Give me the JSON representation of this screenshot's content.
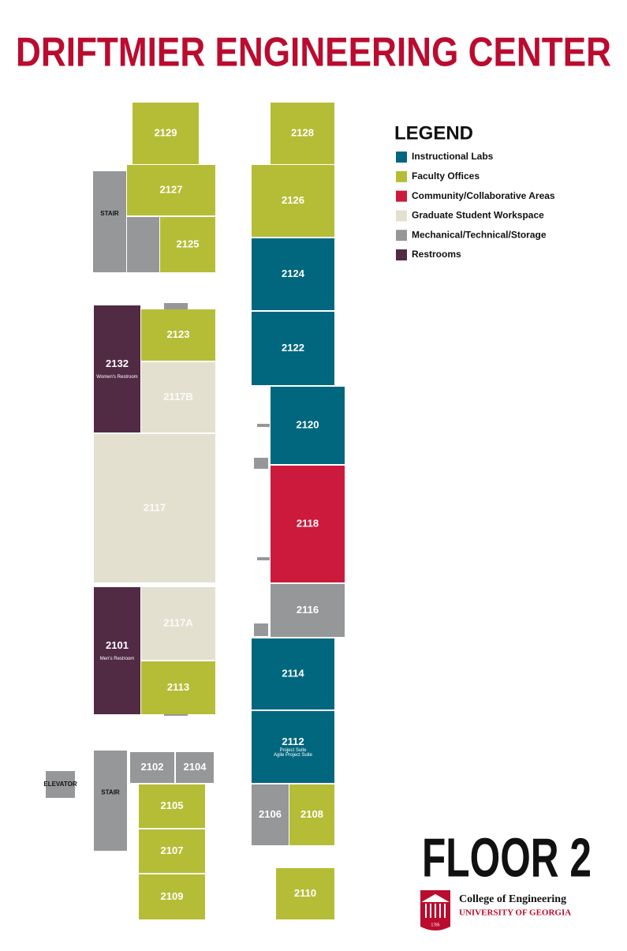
{
  "header": {
    "title": "DRIFTMIER ENGINEERING CENTER"
  },
  "legend": {
    "title": "LEGEND",
    "items": [
      "Instructional Labs",
      "Faculty Offices",
      "Community/Collaborative Areas",
      "Graduate Student Workspace",
      "Mechanical/Technical/Storage",
      "Restrooms"
    ]
  },
  "rooms": [
    {
      "label": "2129"
    },
    {
      "label": "2127"
    },
    {
      "label": "STAIR"
    },
    {
      "label": "2125"
    },
    {
      "label": "2128"
    },
    {
      "label": "2126"
    },
    {
      "label": "2124"
    },
    {
      "label": "2122"
    },
    {
      "label": "2120"
    },
    {
      "label": "2118"
    },
    {
      "label": "2116"
    },
    {
      "label": "2114"
    },
    {
      "label": "2112",
      "note": "Project Suite",
      "sublabel": "Agile Project Suite"
    },
    {
      "label": "2106"
    },
    {
      "label": "2108"
    },
    {
      "label": "2110"
    },
    {
      "label": "2132",
      "sublabel": "Women's Restroom"
    },
    {
      "label": "2123"
    },
    {
      "label": "2117B"
    },
    {
      "label": "2117"
    },
    {
      "label": "2101",
      "sublabel": "Men's Restroom"
    },
    {
      "label": "2117A"
    },
    {
      "label": "2113"
    },
    {
      "label": "ELEVATOR"
    },
    {
      "label": "STAIR"
    },
    {
      "label": "2102"
    },
    {
      "label": "2104"
    },
    {
      "label": "2105"
    },
    {
      "label": "2107"
    },
    {
      "label": "2109"
    }
  ],
  "floor": "FLOOR 2",
  "logo": {
    "year": "1785",
    "college": "College of Engineering",
    "university": "UNIVERSITY OF GEORGIA"
  }
}
